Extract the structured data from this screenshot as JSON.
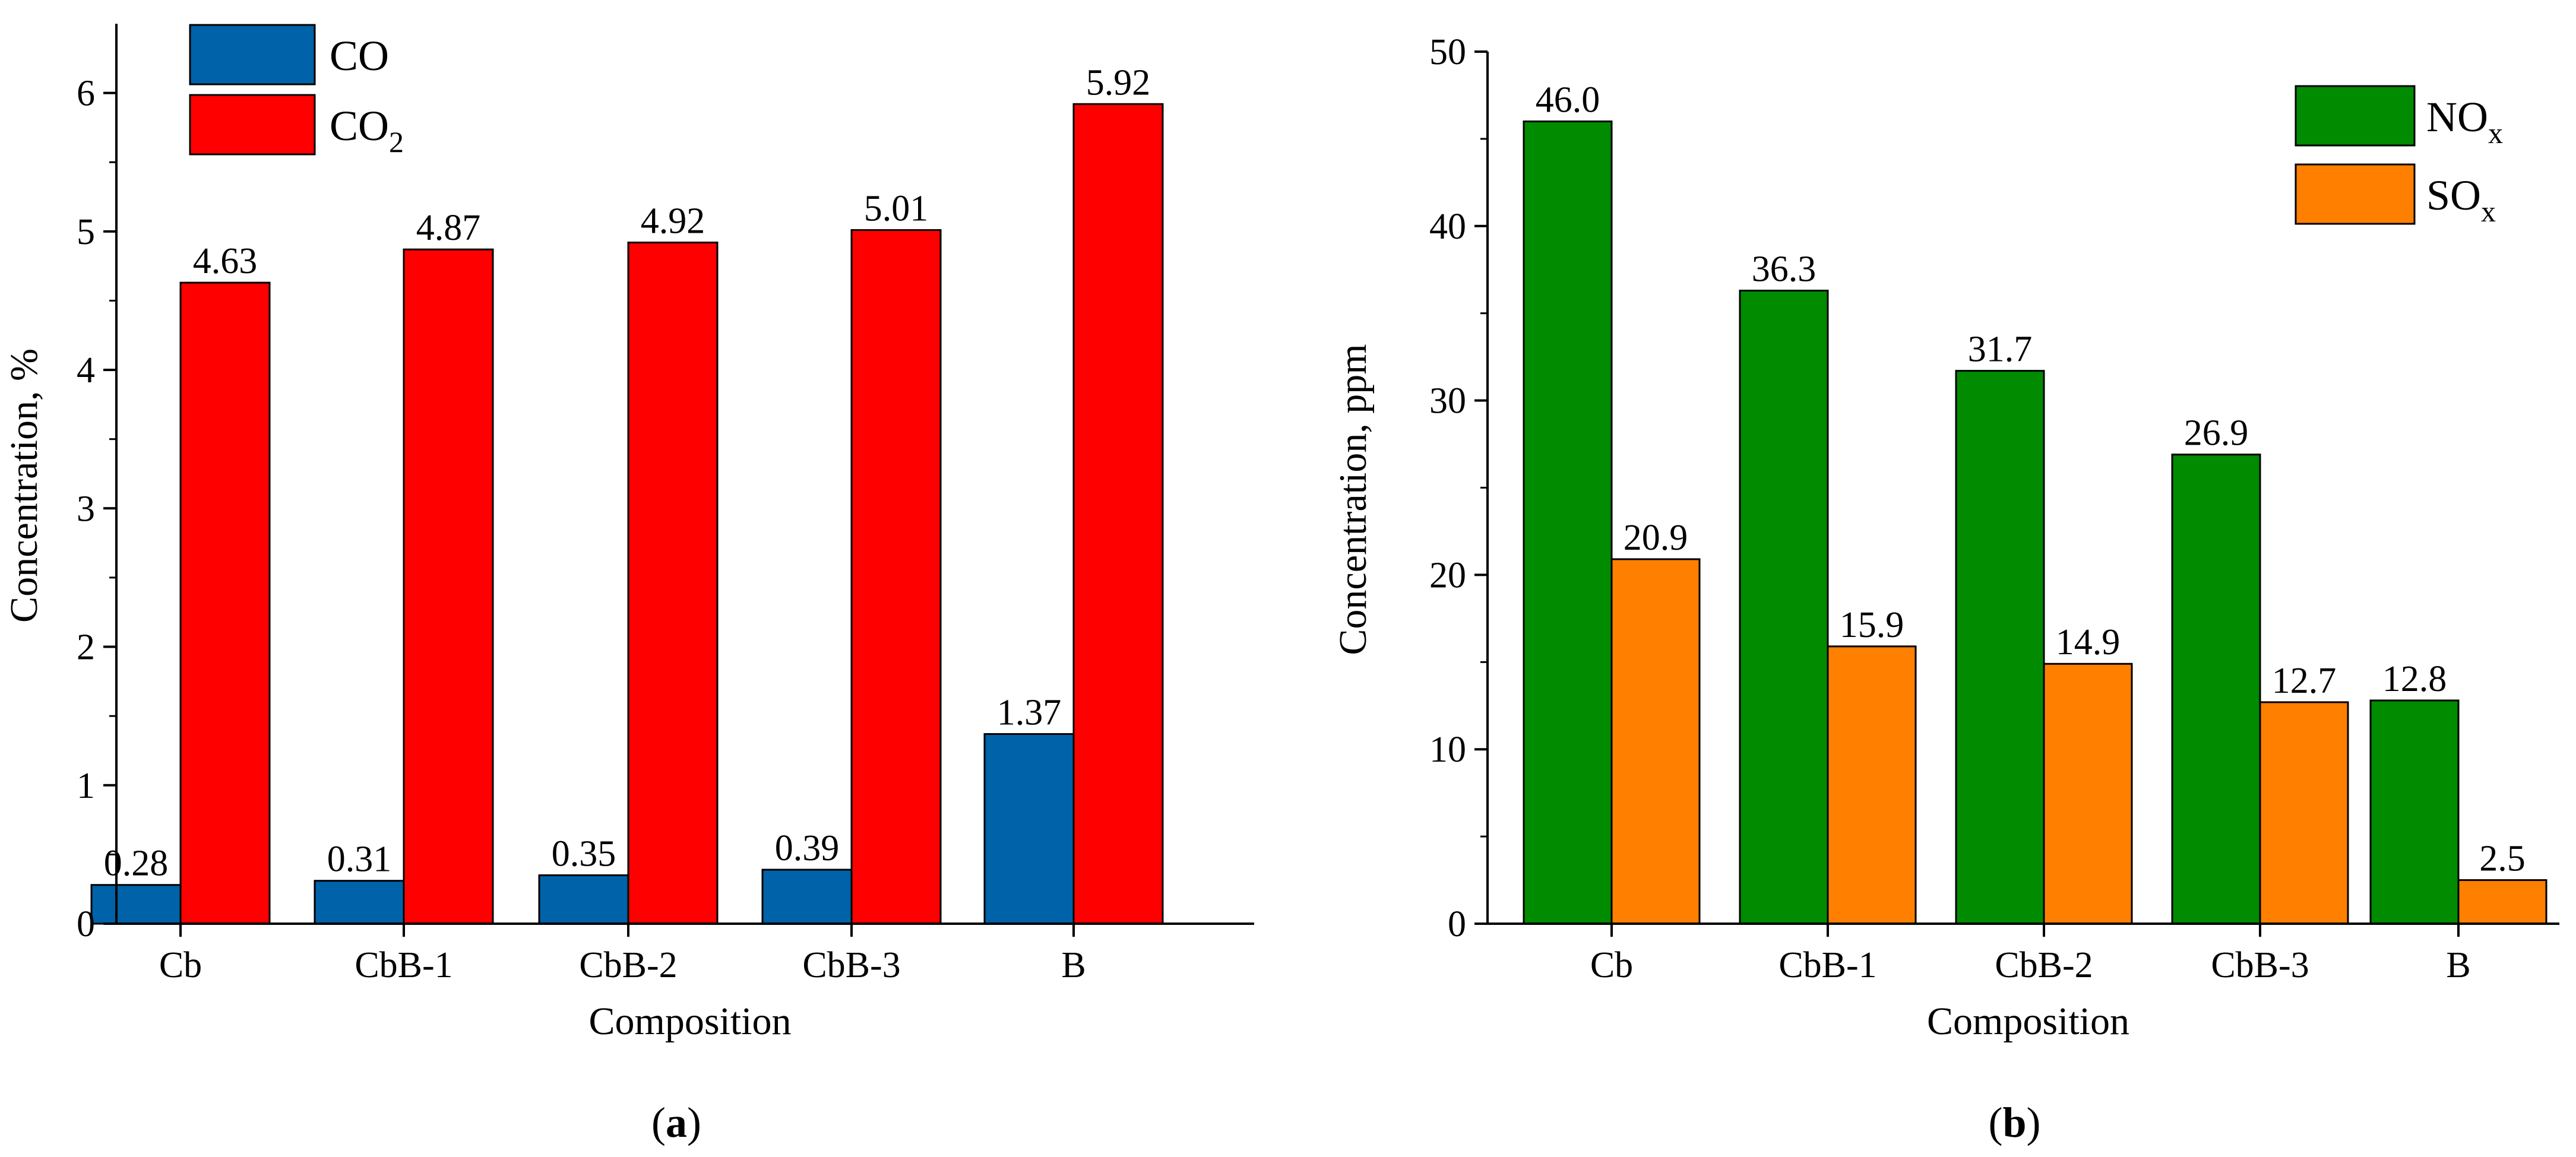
{
  "chart_data": [
    {
      "id": "a",
      "type": "bar",
      "caption_letter": "a",
      "xlabel": "Composition",
      "ylabel": "Concentration, %",
      "categories": [
        "Cb",
        "CbB-1",
        "CbB-2",
        "CbB-3",
        "B"
      ],
      "ylim": [
        0,
        6.5
      ],
      "yticks": [
        0,
        1,
        2,
        3,
        4,
        5,
        6
      ],
      "grid": false,
      "legend_position": "top-left",
      "series": [
        {
          "name": "CO",
          "legend_main": "CO",
          "legend_sub": "",
          "color": "#0062a8",
          "values": [
            0.28,
            0.31,
            0.35,
            0.39,
            1.37
          ],
          "labels": [
            "0.28",
            "0.31",
            "0.35",
            "0.39",
            "1.37"
          ]
        },
        {
          "name": "CO2",
          "legend_main": "CO",
          "legend_sub": "2",
          "color": "#ff0000",
          "values": [
            4.63,
            4.87,
            4.92,
            5.01,
            5.92
          ],
          "labels": [
            "4.63",
            "4.87",
            "4.92",
            "5.01",
            "5.92"
          ]
        }
      ]
    },
    {
      "id": "b",
      "type": "bar",
      "caption_letter": "b",
      "xlabel": "Composition",
      "ylabel": "Concentration, ppm",
      "categories": [
        "Cb",
        "CbB-1",
        "CbB-2",
        "CbB-3",
        "B"
      ],
      "ylim": [
        0,
        50
      ],
      "yticks": [
        0,
        10,
        20,
        30,
        40,
        50
      ],
      "grid": false,
      "legend_position": "top-right",
      "series": [
        {
          "name": "NOx",
          "legend_main": "NO",
          "legend_sub": "x",
          "color": "#008b00",
          "values": [
            46.0,
            36.3,
            31.7,
            26.9,
            12.8
          ],
          "labels": [
            "46.0",
            "36.3",
            "31.7",
            "26.9",
            "12.8"
          ]
        },
        {
          "name": "SOx",
          "legend_main": "SO",
          "legend_sub": "x",
          "color": "#ff7f00",
          "values": [
            20.9,
            15.9,
            14.9,
            12.7,
            2.5
          ],
          "labels": [
            "20.9",
            "15.9",
            "14.9",
            "12.7",
            "2.5"
          ]
        }
      ]
    }
  ]
}
